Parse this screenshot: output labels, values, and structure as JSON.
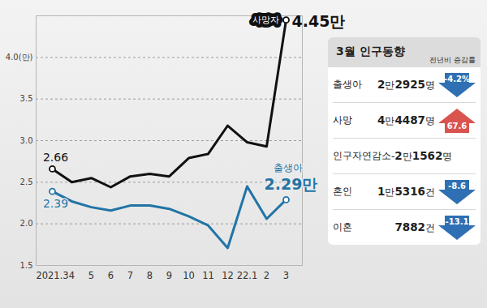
{
  "chart_data": {
    "type": "line",
    "categories": [
      "2021.3",
      "4",
      "5",
      "6",
      "7",
      "8",
      "9",
      "10",
      "11",
      "12",
      "22.1",
      "2",
      "3"
    ],
    "series": [
      {
        "name": "사망자",
        "color": "#111111",
        "values": [
          2.66,
          2.5,
          2.55,
          2.44,
          2.57,
          2.6,
          2.57,
          2.79,
          2.84,
          3.18,
          2.98,
          2.93,
          4.45
        ],
        "value_labels": [
          "2.66",
          null,
          null,
          null,
          null,
          null,
          null,
          null,
          null,
          null,
          null,
          null,
          "4.45만"
        ]
      },
      {
        "name": "출생아",
        "color": "#2274a5",
        "values": [
          2.39,
          2.27,
          2.2,
          2.16,
          2.22,
          2.22,
          2.18,
          2.09,
          1.98,
          1.71,
          2.45,
          2.06,
          2.29
        ],
        "value_labels": [
          "2.39",
          null,
          null,
          null,
          null,
          null,
          null,
          null,
          null,
          null,
          null,
          null,
          "2.29만"
        ]
      }
    ],
    "ylim": [
      1.5,
      4.5
    ],
    "yticks": [
      1.5,
      {
        "value": 2,
        "label": "2.0"
      },
      2.5,
      {
        "value": 3,
        "label": "3.0"
      },
      3.5,
      {
        "value": 4,
        "label": "4.0(만)"
      }
    ],
    "grid": true
  },
  "panel": {
    "title": "3월 인구동향",
    "change_header": "전년비 증감률",
    "rows": [
      {
        "label": "출생아",
        "value": "2만2925명",
        "change": "-4.2%"
      },
      {
        "label": "사망",
        "value": "4만4487명",
        "change": "67.6"
      },
      {
        "label": "인구자연감소",
        "value": "-2만1562명",
        "change": null
      },
      {
        "label": "혼인",
        "value": "1만5316건",
        "change": "-8.6"
      },
      {
        "label": "이혼",
        "value": "7882건",
        "change": "-13.1"
      }
    ]
  }
}
